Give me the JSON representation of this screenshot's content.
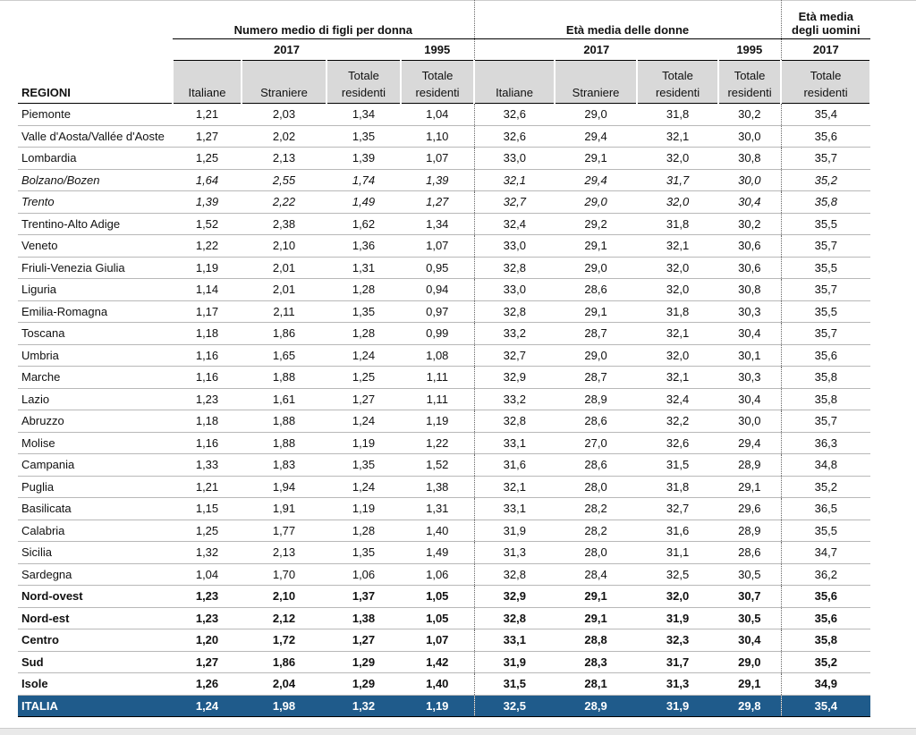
{
  "table": {
    "row_header": "REGIONI",
    "groups": [
      {
        "title": [
          "Numero medio di figli per donna"
        ],
        "years": [
          "2017",
          "1995"
        ],
        "columns": [
          [
            "Italiane"
          ],
          [
            "Straniere"
          ],
          [
            "Totale",
            "residenti"
          ],
          [
            "Totale",
            "residenti"
          ]
        ]
      },
      {
        "title": [
          "Età media delle donne"
        ],
        "years": [
          "2017",
          "1995"
        ],
        "columns": [
          [
            "Italiane"
          ],
          [
            "Straniere"
          ],
          [
            "Totale",
            "residenti"
          ],
          [
            "Totale",
            "residenti"
          ]
        ]
      },
      {
        "title": [
          "Età media",
          "degli uomini"
        ],
        "years": [
          "2017"
        ],
        "columns": [
          [
            "Totale",
            "residenti"
          ]
        ]
      }
    ],
    "rows": [
      {
        "region": "Piemonte",
        "values": [
          "1,21",
          "2,03",
          "1,34",
          "1,04",
          "32,6",
          "29,0",
          "31,8",
          "30,2",
          "35,4"
        ]
      },
      {
        "region": "Valle d'Aosta/Vallée d'Aoste",
        "values": [
          "1,27",
          "2,02",
          "1,35",
          "1,10",
          "32,6",
          "29,4",
          "32,1",
          "30,0",
          "35,6"
        ]
      },
      {
        "region": "Lombardia",
        "values": [
          "1,25",
          "2,13",
          "1,39",
          "1,07",
          "33,0",
          "29,1",
          "32,0",
          "30,8",
          "35,7"
        ]
      },
      {
        "region": "Bolzano/Bozen",
        "values": [
          "1,64",
          "2,55",
          "1,74",
          "1,39",
          "32,1",
          "29,4",
          "31,7",
          "30,0",
          "35,2"
        ]
      },
      {
        "region": "Trento",
        "values": [
          "1,39",
          "2,22",
          "1,49",
          "1,27",
          "32,7",
          "29,0",
          "32,0",
          "30,4",
          "35,8"
        ]
      },
      {
        "region": "Trentino-Alto Adige",
        "values": [
          "1,52",
          "2,38",
          "1,62",
          "1,34",
          "32,4",
          "29,2",
          "31,8",
          "30,2",
          "35,5"
        ]
      },
      {
        "region": "Veneto",
        "values": [
          "1,22",
          "2,10",
          "1,36",
          "1,07",
          "33,0",
          "29,1",
          "32,1",
          "30,6",
          "35,7"
        ]
      },
      {
        "region": "Friuli-Venezia Giulia",
        "values": [
          "1,19",
          "2,01",
          "1,31",
          "0,95",
          "32,8",
          "29,0",
          "32,0",
          "30,6",
          "35,5"
        ]
      },
      {
        "region": "Liguria",
        "values": [
          "1,14",
          "2,01",
          "1,28",
          "0,94",
          "33,0",
          "28,6",
          "32,0",
          "30,8",
          "35,7"
        ]
      },
      {
        "region": "Emilia-Romagna",
        "values": [
          "1,17",
          "2,11",
          "1,35",
          "0,97",
          "32,8",
          "29,1",
          "31,8",
          "30,3",
          "35,5"
        ]
      },
      {
        "region": "Toscana",
        "values": [
          "1,18",
          "1,86",
          "1,28",
          "0,99",
          "33,2",
          "28,7",
          "32,1",
          "30,4",
          "35,7"
        ]
      },
      {
        "region": "Umbria",
        "values": [
          "1,16",
          "1,65",
          "1,24",
          "1,08",
          "32,7",
          "29,0",
          "32,0",
          "30,1",
          "35,6"
        ]
      },
      {
        "region": "Marche",
        "values": [
          "1,16",
          "1,88",
          "1,25",
          "1,11",
          "32,9",
          "28,7",
          "32,1",
          "30,3",
          "35,8"
        ]
      },
      {
        "region": "Lazio",
        "values": [
          "1,23",
          "1,61",
          "1,27",
          "1,11",
          "33,2",
          "28,9",
          "32,4",
          "30,4",
          "35,8"
        ]
      },
      {
        "region": "Abruzzo",
        "values": [
          "1,18",
          "1,88",
          "1,24",
          "1,19",
          "32,8",
          "28,6",
          "32,2",
          "30,0",
          "35,7"
        ]
      },
      {
        "region": "Molise",
        "values": [
          "1,16",
          "1,88",
          "1,19",
          "1,22",
          "33,1",
          "27,0",
          "32,6",
          "29,4",
          "36,3"
        ]
      },
      {
        "region": "Campania",
        "values": [
          "1,33",
          "1,83",
          "1,35",
          "1,52",
          "31,6",
          "28,6",
          "31,5",
          "28,9",
          "34,8"
        ]
      },
      {
        "region": "Puglia",
        "values": [
          "1,21",
          "1,94",
          "1,24",
          "1,38",
          "32,1",
          "28,0",
          "31,8",
          "29,1",
          "35,2"
        ]
      },
      {
        "region": "Basilicata",
        "values": [
          "1,15",
          "1,91",
          "1,19",
          "1,31",
          "33,1",
          "28,2",
          "32,7",
          "29,6",
          "36,5"
        ]
      },
      {
        "region": "Calabria",
        "values": [
          "1,25",
          "1,77",
          "1,28",
          "1,40",
          "31,9",
          "28,2",
          "31,6",
          "28,9",
          "35,5"
        ]
      },
      {
        "region": "Sicilia",
        "values": [
          "1,32",
          "2,13",
          "1,35",
          "1,49",
          "31,3",
          "28,0",
          "31,1",
          "28,6",
          "34,7"
        ]
      },
      {
        "region": "Sardegna",
        "values": [
          "1,04",
          "1,70",
          "1,06",
          "1,06",
          "32,8",
          "28,4",
          "32,5",
          "30,5",
          "36,2"
        ]
      },
      {
        "region": "Nord-ovest",
        "values": [
          "1,23",
          "2,10",
          "1,37",
          "1,05",
          "32,9",
          "29,1",
          "32,0",
          "30,7",
          "35,6"
        ]
      },
      {
        "region": "Nord-est",
        "values": [
          "1,23",
          "2,12",
          "1,38",
          "1,05",
          "32,8",
          "29,1",
          "31,9",
          "30,5",
          "35,6"
        ]
      },
      {
        "region": "Centro",
        "values": [
          "1,20",
          "1,72",
          "1,27",
          "1,07",
          "33,1",
          "28,8",
          "32,3",
          "30,4",
          "35,8"
        ]
      },
      {
        "region": "Sud",
        "values": [
          "1,27",
          "1,86",
          "1,29",
          "1,42",
          "31,9",
          "28,3",
          "31,7",
          "29,0",
          "35,2"
        ]
      },
      {
        "region": "Isole",
        "values": [
          "1,26",
          "2,04",
          "1,29",
          "1,40",
          "31,5",
          "28,1",
          "31,3",
          "29,1",
          "34,9"
        ]
      },
      {
        "region": "ITALIA",
        "values": [
          "1,24",
          "1,98",
          "1,32",
          "1,19",
          "32,5",
          "28,9",
          "31,9",
          "29,8",
          "35,4"
        ]
      }
    ]
  }
}
